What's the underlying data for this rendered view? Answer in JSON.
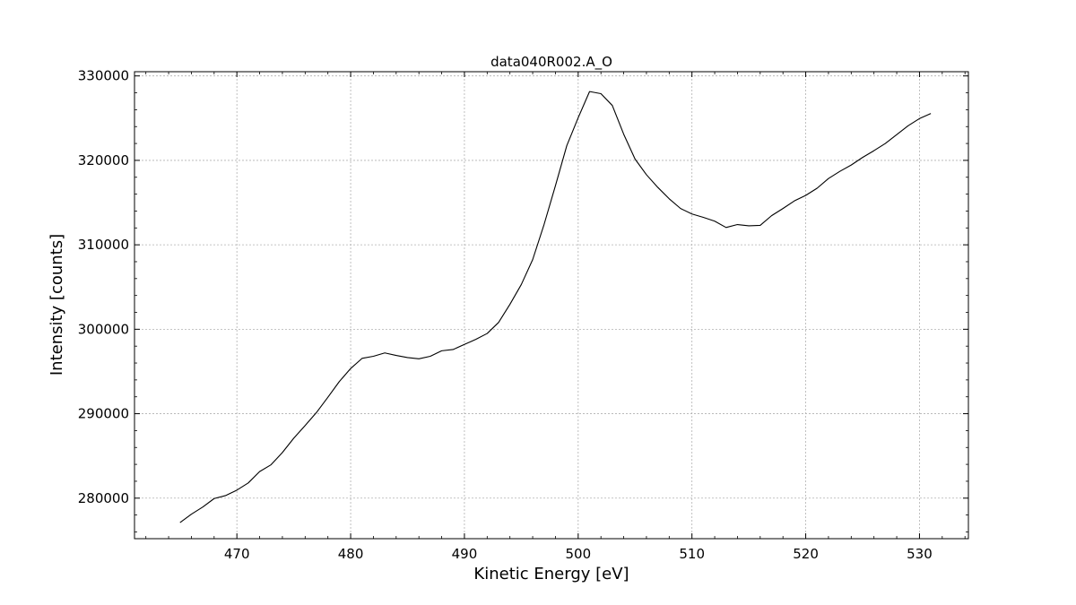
{
  "chart_data": {
    "type": "line",
    "title": "data040R002.A_O",
    "xlabel": "Kinetic Energy [eV]",
    "ylabel": "Intensity [counts]",
    "xlim": [
      461,
      534.3
    ],
    "ylim": [
      275200,
      330500
    ],
    "xticks": [
      470,
      480,
      490,
      500,
      510,
      520,
      530
    ],
    "yticks": [
      280000,
      290000,
      300000,
      310000,
      320000,
      330000
    ],
    "grid": true,
    "series": [
      {
        "color": "#000000",
        "x": [
          465,
          466,
          467,
          468,
          469,
          470,
          471,
          472,
          473,
          474,
          475,
          476,
          477,
          478,
          479,
          480,
          481,
          482,
          483,
          484,
          485,
          486,
          487,
          488,
          489,
          490,
          491,
          492,
          493,
          494,
          495,
          496,
          497,
          498,
          499,
          500,
          501,
          502,
          503,
          504,
          505,
          506,
          507,
          508,
          509,
          510,
          511,
          512,
          513,
          514,
          515,
          516,
          517,
          518,
          519,
          520,
          521,
          522,
          523,
          524,
          525,
          526,
          527,
          528,
          529,
          530,
          531
        ],
        "y": [
          277100,
          278100,
          278950,
          279950,
          280300,
          280950,
          281800,
          283150,
          283950,
          285400,
          287100,
          288600,
          290150,
          291950,
          293800,
          295350,
          296550,
          296800,
          297200,
          296900,
          296650,
          296500,
          296800,
          297450,
          297600,
          298200,
          298800,
          299500,
          300800,
          302950,
          305300,
          308250,
          312400,
          317000,
          321750,
          325050,
          328150,
          327900,
          326500,
          323100,
          320150,
          318300,
          316800,
          315450,
          314300,
          313650,
          313250,
          312800,
          312050,
          312400,
          312250,
          312300,
          313450,
          314300,
          315200,
          315850,
          316700,
          317850,
          318700,
          319450,
          320350,
          321150,
          322000,
          323050,
          324100,
          324950,
          325550
        ]
      }
    ]
  }
}
